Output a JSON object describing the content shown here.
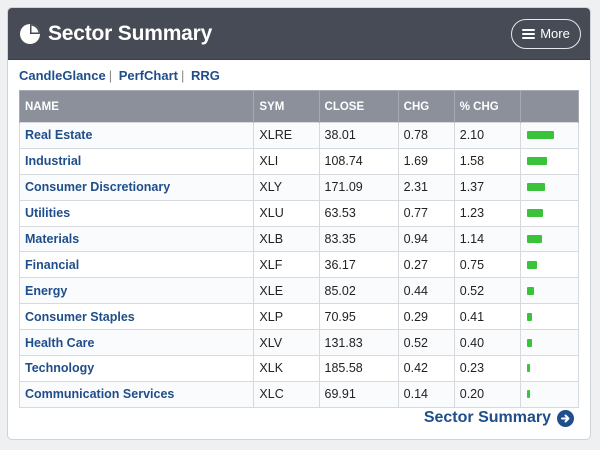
{
  "header": {
    "title": "Sector Summary",
    "more_label": "More",
    "icon": "pie-chart-icon"
  },
  "links": [
    "CandleGlance",
    "PerfChart",
    "RRG"
  ],
  "table": {
    "columns": [
      "NAME",
      "SYM",
      "CLOSE",
      "CHG",
      "% CHG",
      ""
    ],
    "rows": [
      {
        "name": "Real Estate",
        "sym": "XLRE",
        "close": "38.01",
        "chg": "0.78",
        "pct": "2.10"
      },
      {
        "name": "Industrial",
        "sym": "XLI",
        "close": "108.74",
        "chg": "1.69",
        "pct": "1.58"
      },
      {
        "name": "Consumer Discretionary",
        "sym": "XLY",
        "close": "171.09",
        "chg": "2.31",
        "pct": "1.37"
      },
      {
        "name": "Utilities",
        "sym": "XLU",
        "close": "63.53",
        "chg": "0.77",
        "pct": "1.23"
      },
      {
        "name": "Materials",
        "sym": "XLB",
        "close": "83.35",
        "chg": "0.94",
        "pct": "1.14"
      },
      {
        "name": "Financial",
        "sym": "XLF",
        "close": "36.17",
        "chg": "0.27",
        "pct": "0.75"
      },
      {
        "name": "Energy",
        "sym": "XLE",
        "close": "85.02",
        "chg": "0.44",
        "pct": "0.52"
      },
      {
        "name": "Consumer Staples",
        "sym": "XLP",
        "close": "70.95",
        "chg": "0.29",
        "pct": "0.41"
      },
      {
        "name": "Health Care",
        "sym": "XLV",
        "close": "131.83",
        "chg": "0.52",
        "pct": "0.40"
      },
      {
        "name": "Technology",
        "sym": "XLK",
        "close": "185.58",
        "chg": "0.42",
        "pct": "0.23"
      },
      {
        "name": "Communication Services",
        "sym": "XLC",
        "close": "69.91",
        "chg": "0.14",
        "pct": "0.20"
      }
    ]
  },
  "footer": {
    "label": "Sector Summary",
    "icon": "arrow-right-circle-icon"
  },
  "colors": {
    "header_bg": "#474b55",
    "table_header_bg": "#8b909b",
    "link": "#1f4e8a",
    "bar": "#39c23a"
  }
}
